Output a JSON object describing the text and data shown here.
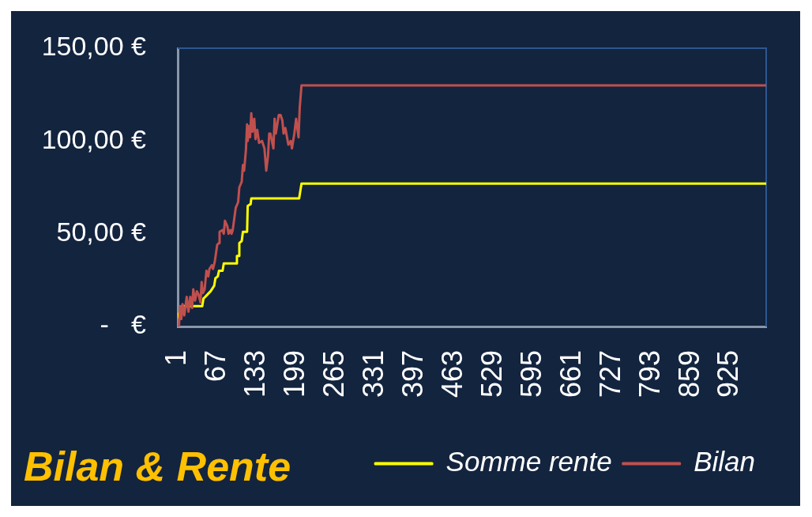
{
  "chart_data": {
    "type": "line",
    "title": "Bilan & Rente",
    "xlim": [
      1,
      985
    ],
    "xticks": [
      1,
      67,
      133,
      199,
      265,
      331,
      397,
      463,
      529,
      595,
      661,
      727,
      793,
      859,
      925
    ],
    "ylim": [
      0,
      150
    ],
    "yticks": [
      {
        "value": 0,
        "label": "-   €"
      },
      {
        "value": 50,
        "label": "50,00 €"
      },
      {
        "value": 100,
        "label": "100,00 €"
      },
      {
        "value": 150,
        "label": "150,00 €"
      }
    ],
    "legend": "bottom right",
    "marker": "none",
    "line_style": "solid",
    "series": [
      {
        "name": "Somme rente",
        "color": "#ffff00",
        "x": [
          1,
          8,
          42,
          44,
          50,
          56,
          58,
          62,
          64,
          68,
          70,
          76,
          78,
          99,
          100,
          103,
          104,
          108,
          110,
          117,
          118,
          123,
          124,
          204,
          208,
          985
        ],
        "values": [
          5,
          11,
          11,
          15,
          17,
          19,
          20,
          22,
          26,
          27,
          30,
          30,
          34,
          34,
          38,
          38,
          45,
          46,
          51,
          51,
          65,
          66,
          69,
          69,
          77,
          77
        ]
      },
      {
        "name": "Bilan",
        "color": "#c0504d",
        "x": [
          1,
          3,
          5,
          7,
          9,
          12,
          16,
          19,
          22,
          25,
          27,
          30,
          33,
          36,
          39,
          41,
          43,
          46,
          49,
          52,
          54,
          58,
          60,
          63,
          67,
          70,
          71,
          76,
          78,
          80,
          84,
          86,
          89,
          91,
          93,
          98,
          102,
          104,
          108,
          110,
          112,
          115,
          117,
          118,
          120,
          122,
          124,
          126,
          129,
          131,
          134,
          137,
          142,
          146,
          149,
          152,
          154,
          156,
          161,
          163,
          165,
          170,
          173,
          176,
          178,
          181,
          186,
          190,
          192,
          196,
          199,
          201,
          203,
          205,
          208,
          985
        ],
        "values": [
          0,
          0,
          11,
          4,
          12,
          6,
          16,
          8,
          16,
          10,
          20,
          14,
          19,
          17,
          13,
          24,
          18,
          20,
          30,
          27,
          31,
          33,
          31,
          35,
          44,
          45,
          51,
          52,
          50,
          57,
          54,
          50,
          52,
          50,
          52,
          64,
          67,
          75,
          78,
          87,
          84,
          95,
          109,
          100,
          108,
          102,
          115,
          105,
          112,
          101,
          106,
          99,
          100,
          96,
          84,
          92,
          104,
          104,
          96,
          112,
          104,
          114,
          114,
          111,
          104,
          107,
          98,
          100,
          96,
          104,
          112,
          107,
          102,
          118,
          130,
          130
        ]
      }
    ]
  }
}
